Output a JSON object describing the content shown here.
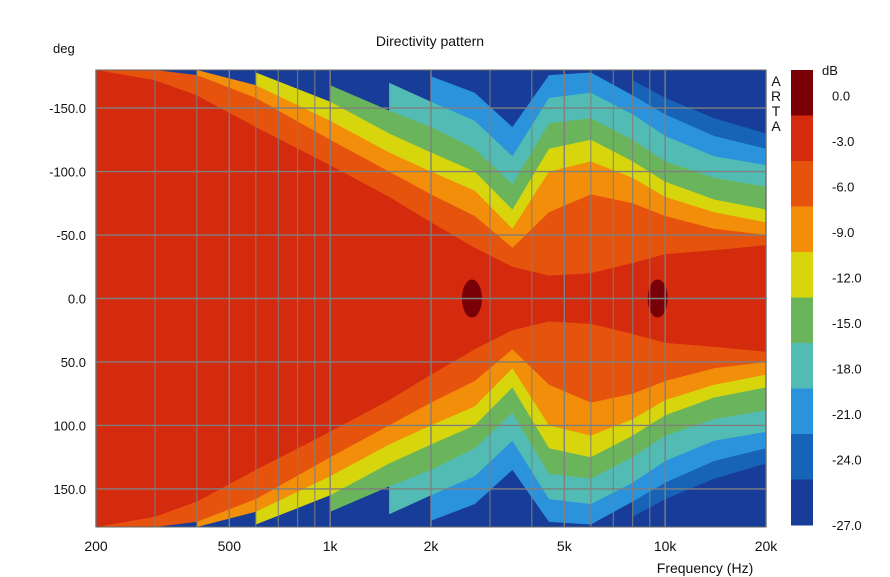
{
  "chart_data": {
    "type": "heatmap",
    "title": "Directivity pattern",
    "xlabel": "Frequency (Hz)",
    "ylabel": "deg",
    "xscale": "log",
    "xlim": [
      200,
      20000
    ],
    "ylim": [
      -180,
      180
    ],
    "x_ticks": [
      {
        "value": 200,
        "label": "200"
      },
      {
        "value": 500,
        "label": "500"
      },
      {
        "value": 1000,
        "label": "1k"
      },
      {
        "value": 2000,
        "label": "2k"
      },
      {
        "value": 5000,
        "label": "5k"
      },
      {
        "value": 10000,
        "label": "10k"
      },
      {
        "value": 20000,
        "label": "20k"
      }
    ],
    "x_minor_grid": [
      300,
      400,
      600,
      700,
      800,
      900,
      3000,
      4000,
      6000,
      7000,
      8000,
      9000
    ],
    "y_ticks": [
      {
        "value": -150,
        "label": "-150.0"
      },
      {
        "value": -100,
        "label": "-100.0"
      },
      {
        "value": -50,
        "label": "-50.0"
      },
      {
        "value": 0,
        "label": "0.0"
      },
      {
        "value": 50,
        "label": "50.0"
      },
      {
        "value": 100,
        "label": "100.0"
      },
      {
        "value": 150,
        "label": "150.0"
      }
    ],
    "watermark": "ARTA",
    "colorbar": {
      "unit": "dB",
      "levels": [
        {
          "label": "",
          "color": "#7a0008"
        },
        {
          "label": "0.0",
          "color": "#d42a0e"
        },
        {
          "label": "-3.0",
          "color": "#e6530c"
        },
        {
          "label": "-6.0",
          "color": "#f28e0a"
        },
        {
          "label": "-9.0",
          "color": "#d7d60c"
        },
        {
          "label": "-12.0",
          "color": "#6ab55c"
        },
        {
          "label": "-15.0",
          "color": "#52bbb4"
        },
        {
          "label": "-18.0",
          "color": "#2a93dc"
        },
        {
          "label": "-21.0",
          "color": "#1763b8"
        },
        {
          "label": "-24.0",
          "color": "#173d98"
        },
        {
          "label": "-27.0",
          "color": ""
        }
      ]
    },
    "contours": {
      "beamwidth_minus3dB": [
        {
          "hz": 200,
          "deg": 180
        },
        {
          "hz": 300,
          "deg": 172
        },
        {
          "hz": 400,
          "deg": 160
        },
        {
          "hz": 600,
          "deg": 135
        },
        {
          "hz": 1000,
          "deg": 105
        },
        {
          "hz": 1500,
          "deg": 80
        },
        {
          "hz": 2000,
          "deg": 60
        },
        {
          "hz": 2700,
          "deg": 40
        },
        {
          "hz": 3500,
          "deg": 25
        },
        {
          "hz": 4500,
          "deg": 18
        },
        {
          "hz": 6000,
          "deg": 20
        },
        {
          "hz": 8000,
          "deg": 28
        },
        {
          "hz": 10000,
          "deg": 35
        },
        {
          "hz": 14000,
          "deg": 38
        },
        {
          "hz": 20000,
          "deg": 42
        }
      ],
      "beamwidth_minus6dB": [
        {
          "hz": 200,
          "deg": 180
        },
        {
          "hz": 300,
          "deg": 180
        },
        {
          "hz": 400,
          "deg": 176
        },
        {
          "hz": 600,
          "deg": 158
        },
        {
          "hz": 1000,
          "deg": 125
        },
        {
          "hz": 1500,
          "deg": 100
        },
        {
          "hz": 2000,
          "deg": 82
        },
        {
          "hz": 2700,
          "deg": 65
        },
        {
          "hz": 3500,
          "deg": 40
        },
        {
          "hz": 4500,
          "deg": 68
        },
        {
          "hz": 6000,
          "deg": 82
        },
        {
          "hz": 8000,
          "deg": 75
        },
        {
          "hz": 10000,
          "deg": 65
        },
        {
          "hz": 14000,
          "deg": 55
        },
        {
          "hz": 20000,
          "deg": 50
        }
      ],
      "beamwidth_minus9dB": [
        {
          "hz": 400,
          "deg": 180
        },
        {
          "hz": 600,
          "deg": 168
        },
        {
          "hz": 1000,
          "deg": 140
        },
        {
          "hz": 1500,
          "deg": 115
        },
        {
          "hz": 2000,
          "deg": 100
        },
        {
          "hz": 2700,
          "deg": 85
        },
        {
          "hz": 3500,
          "deg": 55
        },
        {
          "hz": 4500,
          "deg": 100
        },
        {
          "hz": 6000,
          "deg": 108
        },
        {
          "hz": 8000,
          "deg": 95
        },
        {
          "hz": 10000,
          "deg": 80
        },
        {
          "hz": 14000,
          "deg": 68
        },
        {
          "hz": 20000,
          "deg": 60
        }
      ],
      "beamwidth_minus12dB": [
        {
          "hz": 600,
          "deg": 178
        },
        {
          "hz": 1000,
          "deg": 155
        },
        {
          "hz": 1500,
          "deg": 130
        },
        {
          "hz": 2000,
          "deg": 115
        },
        {
          "hz": 2700,
          "deg": 100
        },
        {
          "hz": 3500,
          "deg": 70
        },
        {
          "hz": 4500,
          "deg": 118
        },
        {
          "hz": 6000,
          "deg": 125
        },
        {
          "hz": 8000,
          "deg": 108
        },
        {
          "hz": 10000,
          "deg": 92
        },
        {
          "hz": 14000,
          "deg": 78
        },
        {
          "hz": 20000,
          "deg": 70
        }
      ],
      "beamwidth_minus15dB": [
        {
          "hz": 1000,
          "deg": 168
        },
        {
          "hz": 1500,
          "deg": 148
        },
        {
          "hz": 2000,
          "deg": 135
        },
        {
          "hz": 2700,
          "deg": 118
        },
        {
          "hz": 3500,
          "deg": 90
        },
        {
          "hz": 4500,
          "deg": 138
        },
        {
          "hz": 6000,
          "deg": 142
        },
        {
          "hz": 8000,
          "deg": 125
        },
        {
          "hz": 10000,
          "deg": 108
        },
        {
          "hz": 14000,
          "deg": 95
        },
        {
          "hz": 20000,
          "deg": 88
        }
      ],
      "beamwidth_minus18dB": [
        {
          "hz": 1500,
          "deg": 170
        },
        {
          "hz": 2000,
          "deg": 155
        },
        {
          "hz": 2700,
          "deg": 140
        },
        {
          "hz": 3500,
          "deg": 112
        },
        {
          "hz": 4500,
          "deg": 158
        },
        {
          "hz": 6000,
          "deg": 162
        },
        {
          "hz": 8000,
          "deg": 145
        },
        {
          "hz": 10000,
          "deg": 128
        },
        {
          "hz": 14000,
          "deg": 112
        },
        {
          "hz": 20000,
          "deg": 105
        }
      ],
      "beamwidth_minus21dB": [
        {
          "hz": 2000,
          "deg": 175
        },
        {
          "hz": 2700,
          "deg": 162
        },
        {
          "hz": 3500,
          "deg": 135
        },
        {
          "hz": 4500,
          "deg": 176
        },
        {
          "hz": 6000,
          "deg": 178
        },
        {
          "hz": 8000,
          "deg": 160
        },
        {
          "hz": 10000,
          "deg": 145
        },
        {
          "hz": 14000,
          "deg": 128
        },
        {
          "hz": 20000,
          "deg": 118
        }
      ],
      "beamwidth_minus24dB": [
        {
          "hz": 8000,
          "deg": 172
        },
        {
          "hz": 10000,
          "deg": 158
        },
        {
          "hz": 14000,
          "deg": 142
        },
        {
          "hz": 20000,
          "deg": 130
        }
      ],
      "peaks_above_0dB": [
        {
          "hz": 2650,
          "deg": 0,
          "half_width_deg": 15
        },
        {
          "hz": 9500,
          "deg": 0,
          "half_width_deg": 15
        }
      ]
    }
  }
}
